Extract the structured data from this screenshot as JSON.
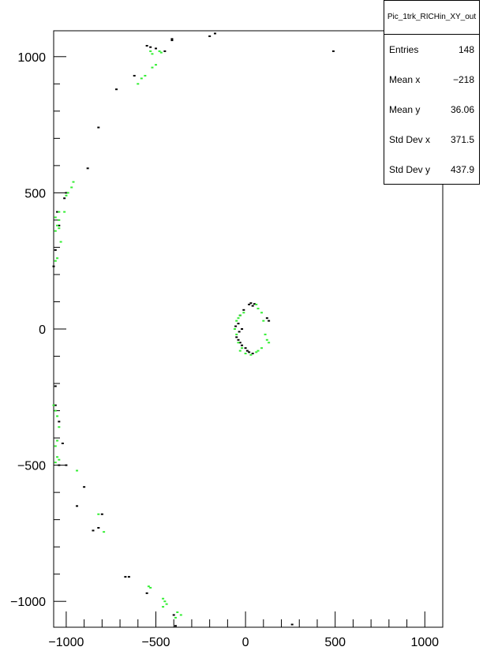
{
  "stats": {
    "title": "Pic_1trk_RICHin_XY_out",
    "rows": [
      {
        "label": "Entries",
        "value": "148"
      },
      {
        "label": "Mean x",
        "value": "−218"
      },
      {
        "label": "Mean y",
        "value": "36.06"
      },
      {
        "label": "Std Dev x",
        "value": "371.5"
      },
      {
        "label": "Std Dev y",
        "value": "437.9"
      }
    ]
  },
  "colors": {
    "series_black": "#000000",
    "series_green": "#33ee33",
    "axis": "#000000"
  },
  "chart_data": {
    "type": "scatter",
    "title": "",
    "xlabel": "",
    "ylabel": "",
    "xlim": [
      -1070,
      1100
    ],
    "ylim": [
      -1095,
      1095
    ],
    "grid": false,
    "x_ticks": [
      {
        "value": -1000,
        "label": "−1000"
      },
      {
        "value": -500,
        "label": "−500"
      },
      {
        "value": 0,
        "label": "0"
      },
      {
        "value": 500,
        "label": "500"
      },
      {
        "value": 1000,
        "label": "1000"
      }
    ],
    "y_ticks": [
      {
        "value": -1000,
        "label": "−1000"
      },
      {
        "value": -500,
        "label": "−500"
      },
      {
        "value": 0,
        "label": "0"
      },
      {
        "value": 500,
        "label": "500"
      },
      {
        "value": 1000,
        "label": "1000"
      }
    ],
    "series": [
      {
        "color": "#000000",
        "points": [
          [
            -170,
            1085
          ],
          [
            -200,
            1075
          ],
          [
            -410,
            1065
          ],
          [
            -410,
            1060
          ],
          [
            -530,
            1035
          ],
          [
            -550,
            1040
          ],
          [
            -500,
            1030
          ],
          [
            -450,
            1020
          ],
          [
            -620,
            930
          ],
          [
            -720,
            880
          ],
          [
            -820,
            740
          ],
          [
            -880,
            590
          ],
          [
            -1000,
            500
          ],
          [
            -1010,
            480
          ],
          [
            -1050,
            430
          ],
          [
            -1040,
            380
          ],
          [
            -1060,
            290
          ],
          [
            -1070,
            230
          ],
          [
            490,
            1020
          ],
          [
            -1060,
            -210
          ],
          [
            -1060,
            -280
          ],
          [
            -1040,
            -340
          ],
          [
            -1020,
            -420
          ],
          [
            -1040,
            -500
          ],
          [
            -1000,
            -500
          ],
          [
            -900,
            -580
          ],
          [
            -940,
            -650
          ],
          [
            -800,
            -680
          ],
          [
            -820,
            -730
          ],
          [
            -850,
            -740
          ],
          [
            -670,
            -910
          ],
          [
            -650,
            -910
          ],
          [
            -550,
            -970
          ],
          [
            -400,
            -1050
          ],
          [
            -390,
            -1090
          ],
          [
            260,
            -1085
          ],
          [
            20,
            90
          ],
          [
            30,
            95
          ],
          [
            40,
            85
          ],
          [
            50,
            92
          ],
          [
            -10,
            70
          ],
          [
            -30,
            50
          ],
          [
            -40,
            20
          ],
          [
            -50,
            -30
          ],
          [
            -40,
            -40
          ],
          [
            -30,
            -50
          ],
          [
            -20,
            -60
          ],
          [
            10,
            -80
          ],
          [
            40,
            -90
          ],
          [
            120,
            40
          ],
          [
            130,
            30
          ],
          [
            -20,
            0
          ],
          [
            -35,
            -10
          ],
          [
            0,
            -70
          ],
          [
            20,
            -85
          ],
          [
            -55,
            10
          ]
        ]
      },
      {
        "color": "#33ee33",
        "points": [
          [
            -530,
            1020
          ],
          [
            -520,
            1010
          ],
          [
            -470,
            1015
          ],
          [
            -480,
            1020
          ],
          [
            -520,
            960
          ],
          [
            -500,
            970
          ],
          [
            -560,
            930
          ],
          [
            -580,
            920
          ],
          [
            -600,
            900
          ],
          [
            -960,
            540
          ],
          [
            -970,
            520
          ],
          [
            -990,
            500
          ],
          [
            -1000,
            490
          ],
          [
            -1010,
            430
          ],
          [
            -1040,
            430
          ],
          [
            -1060,
            410
          ],
          [
            -1040,
            400
          ],
          [
            -1050,
            380
          ],
          [
            -1040,
            370
          ],
          [
            -1060,
            360
          ],
          [
            -1030,
            320
          ],
          [
            -1050,
            260
          ],
          [
            -1060,
            250
          ],
          [
            -1070,
            -280
          ],
          [
            -1060,
            -300
          ],
          [
            -1050,
            -320
          ],
          [
            -1040,
            -360
          ],
          [
            -1050,
            -410
          ],
          [
            -1060,
            -430
          ],
          [
            -1050,
            -470
          ],
          [
            -1040,
            -480
          ],
          [
            -1060,
            -490
          ],
          [
            -940,
            -520
          ],
          [
            -820,
            -680
          ],
          [
            -790,
            -745
          ],
          [
            -540,
            -945
          ],
          [
            -530,
            -950
          ],
          [
            -460,
            -990
          ],
          [
            -450,
            -1000
          ],
          [
            -440,
            -1010
          ],
          [
            -460,
            -1020
          ],
          [
            -380,
            -1040
          ],
          [
            -360,
            -1050
          ],
          [
            -390,
            -1060
          ],
          [
            60,
            90
          ],
          [
            70,
            75
          ],
          [
            90,
            60
          ],
          [
            100,
            30
          ],
          [
            110,
            -20
          ],
          [
            120,
            -40
          ],
          [
            130,
            -50
          ],
          [
            90,
            -70
          ],
          [
            70,
            -80
          ],
          [
            60,
            -85
          ],
          [
            30,
            -95
          ],
          [
            0,
            -90
          ],
          [
            -30,
            50
          ],
          [
            -40,
            40
          ],
          [
            -50,
            30
          ],
          [
            -60,
            0
          ],
          [
            -50,
            -20
          ],
          [
            -40,
            -50
          ],
          [
            -20,
            -70
          ],
          [
            -30,
            -80
          ],
          [
            -10,
            60
          ]
        ]
      }
    ]
  }
}
